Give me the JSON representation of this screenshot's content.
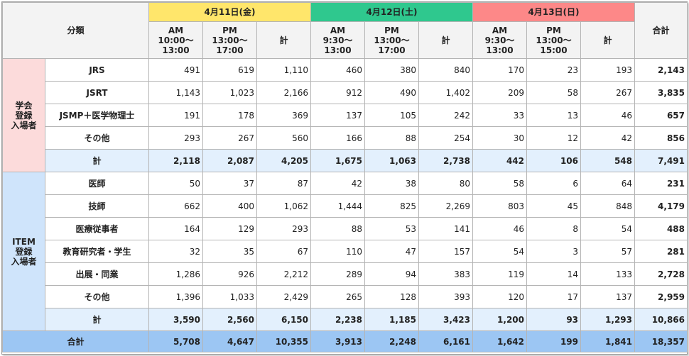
{
  "table": {
    "header": {
      "category_label": "分類",
      "total_label": "合計",
      "days": [
        {
          "date": "4月11日(金)",
          "color": "#ffe66b",
          "sessions": [
            {
              "label": "AM",
              "time": [
                "10:00～",
                "13:00"
              ]
            },
            {
              "label": "PM",
              "time": [
                "13:00～",
                "17:00"
              ]
            }
          ],
          "subtotal_label": "計"
        },
        {
          "date": "4月12日(土)",
          "color": "#2fc88e",
          "sessions": [
            {
              "label": "AM",
              "time": [
                "9:30～",
                "13:00"
              ]
            },
            {
              "label": "PM",
              "time": [
                "13:00～",
                "17:00"
              ]
            }
          ],
          "subtotal_label": "計"
        },
        {
          "date": "4月13日(日)",
          "color": "#fd8888",
          "sessions": [
            {
              "label": "AM",
              "time": [
                "9:30～",
                "13:00"
              ]
            },
            {
              "label": "PM",
              "time": [
                "13:00～",
                "15:00"
              ]
            }
          ],
          "subtotal_label": "計"
        }
      ]
    },
    "groups": [
      {
        "name": [
          "学会",
          "登録",
          "入場者"
        ],
        "color": "#fcdbdb",
        "rows": [
          {
            "label": "JRS",
            "values": [
              "491",
              "619",
              "1,110",
              "460",
              "380",
              "840",
              "170",
              "23",
              "193",
              "2,143"
            ]
          },
          {
            "label": "JSRT",
            "values": [
              "1,143",
              "1,023",
              "2,166",
              "912",
              "490",
              "1,402",
              "209",
              "58",
              "267",
              "3,835"
            ]
          },
          {
            "label": "JSMP＋医学物理士",
            "values": [
              "191",
              "178",
              "369",
              "137",
              "105",
              "242",
              "33",
              "13",
              "46",
              "657"
            ]
          },
          {
            "label": "その他",
            "values": [
              "293",
              "267",
              "560",
              "166",
              "88",
              "254",
              "30",
              "12",
              "42",
              "856"
            ]
          }
        ],
        "subtotal": {
          "label": "計",
          "values": [
            "2,118",
            "2,087",
            "4,205",
            "1,675",
            "1,063",
            "2,738",
            "442",
            "106",
            "548",
            "7,491"
          ]
        }
      },
      {
        "name": [
          "ITEM",
          "登録",
          "入場者"
        ],
        "color": "#cfe4fb",
        "rows": [
          {
            "label": "医師",
            "values": [
              "50",
              "37",
              "87",
              "42",
              "38",
              "80",
              "58",
              "6",
              "64",
              "231"
            ]
          },
          {
            "label": "技師",
            "values": [
              "662",
              "400",
              "1,062",
              "1,444",
              "825",
              "2,269",
              "803",
              "45",
              "848",
              "4,179"
            ]
          },
          {
            "label": "医療従事者",
            "values": [
              "164",
              "129",
              "293",
              "88",
              "53",
              "141",
              "46",
              "8",
              "54",
              "488"
            ]
          },
          {
            "label": "教育研究者・学生",
            "values": [
              "32",
              "35",
              "67",
              "110",
              "47",
              "157",
              "54",
              "3",
              "57",
              "281"
            ]
          },
          {
            "label": "出展・同業",
            "values": [
              "1,286",
              "926",
              "2,212",
              "289",
              "94",
              "383",
              "119",
              "14",
              "133",
              "2,728"
            ]
          },
          {
            "label": "その他",
            "values": [
              "1,396",
              "1,033",
              "2,429",
              "265",
              "128",
              "393",
              "120",
              "17",
              "137",
              "2,959"
            ]
          }
        ],
        "subtotal": {
          "label": "計",
          "values": [
            "3,590",
            "2,560",
            "6,150",
            "2,238",
            "1,185",
            "3,423",
            "1,200",
            "93",
            "1,293",
            "10,866"
          ]
        }
      }
    ],
    "grand_total": {
      "label": "合計",
      "values": [
        "5,708",
        "4,647",
        "10,355",
        "3,913",
        "2,248",
        "6,161",
        "1,642",
        "199",
        "1,841",
        "18,357"
      ]
    }
  }
}
